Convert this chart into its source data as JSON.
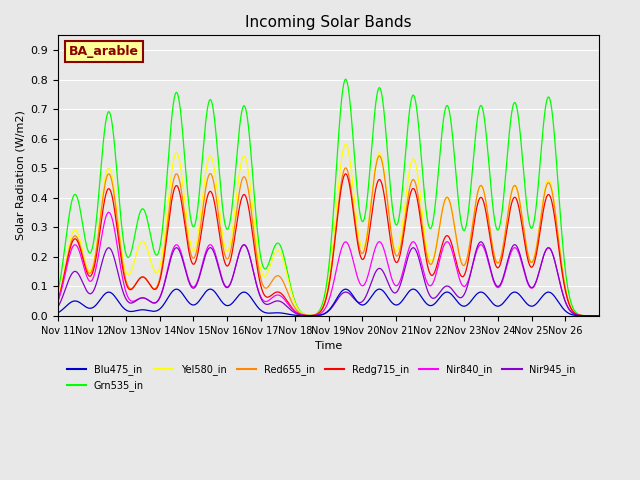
{
  "title": "Incoming Solar Bands",
  "xlabel": "Time",
  "ylabel": "Solar Radiation (W/m2)",
  "annotation": "BA_arable",
  "ylim": [
    0,
    0.95
  ],
  "yticks": [
    0.0,
    0.1,
    0.2,
    0.3,
    0.4,
    0.5,
    0.6,
    0.7,
    0.8,
    0.9
  ],
  "background_color": "#e8e8e8",
  "day_peaks": {
    "Nov11": {
      "grn": 0.41,
      "yel": 0.29,
      "red": 0.27,
      "redg": 0.26,
      "nir840": 0.24,
      "nir945": 0.15,
      "blu": 0.05
    },
    "Nov12": {
      "grn": 0.69,
      "yel": 0.5,
      "red": 0.48,
      "redg": 0.43,
      "nir840": 0.35,
      "nir945": 0.23,
      "blu": 0.08
    },
    "Nov13": {
      "grn": 0.36,
      "yel": 0.25,
      "red": 0.13,
      "redg": 0.13,
      "nir840": 0.06,
      "nir945": 0.06,
      "blu": 0.02
    },
    "Nov14": {
      "grn": 0.755,
      "yel": 0.55,
      "red": 0.48,
      "redg": 0.44,
      "nir840": 0.24,
      "nir945": 0.23,
      "blu": 0.09
    },
    "Nov15": {
      "grn": 0.73,
      "yel": 0.54,
      "red": 0.48,
      "redg": 0.42,
      "nir840": 0.24,
      "nir945": 0.23,
      "blu": 0.09
    },
    "Nov16": {
      "grn": 0.71,
      "yel": 0.54,
      "red": 0.47,
      "redg": 0.41,
      "nir840": 0.24,
      "nir945": 0.24,
      "blu": 0.08
    },
    "Nov17": {
      "grn": 0.245,
      "yel": 0.22,
      "red": 0.135,
      "redg": 0.08,
      "nir840": 0.07,
      "nir945": 0.05,
      "blu": 0.01
    },
    "Nov18": {
      "grn": 0.0,
      "yel": 0.0,
      "red": 0.0,
      "redg": 0.0,
      "nir840": 0.0,
      "nir945": 0.0,
      "blu": 0.0
    },
    "Nov19": {
      "grn": 0.8,
      "yel": 0.58,
      "red": 0.5,
      "redg": 0.48,
      "nir840": 0.25,
      "nir945": 0.08,
      "blu": 0.09
    },
    "Nov20": {
      "grn": 0.77,
      "yel": 0.55,
      "red": 0.54,
      "redg": 0.46,
      "nir840": 0.25,
      "nir945": 0.16,
      "blu": 0.09
    },
    "Nov21": {
      "grn": 0.745,
      "yel": 0.53,
      "red": 0.46,
      "redg": 0.43,
      "nir840": 0.25,
      "nir945": 0.23,
      "blu": 0.09
    },
    "Nov22": {
      "grn": 0.71,
      "yel": 0.4,
      "red": 0.4,
      "redg": 0.27,
      "nir840": 0.25,
      "nir945": 0.1,
      "blu": 0.08
    },
    "Nov23": {
      "grn": 0.71,
      "yel": 0.44,
      "red": 0.44,
      "redg": 0.4,
      "nir840": 0.24,
      "nir945": 0.25,
      "blu": 0.08
    },
    "Nov24": {
      "grn": 0.72,
      "yel": 0.44,
      "red": 0.44,
      "redg": 0.4,
      "nir840": 0.23,
      "nir945": 0.24,
      "blu": 0.08
    },
    "Nov25": {
      "grn": 0.74,
      "yel": 0.46,
      "red": 0.45,
      "redg": 0.41,
      "nir840": 0.23,
      "nir945": 0.23,
      "blu": 0.08
    }
  },
  "day_names": [
    "Nov11",
    "Nov12",
    "Nov13",
    "Nov14",
    "Nov15",
    "Nov16",
    "Nov17",
    "Nov18",
    "Nov19",
    "Nov20",
    "Nov21",
    "Nov22",
    "Nov23",
    "Nov24",
    "Nov25"
  ],
  "xtick_labels": [
    "Nov 11",
    "Nov 12",
    "Nov 13",
    "Nov 14",
    "Nov 15",
    "Nov 16",
    "Nov 17",
    "Nov 18",
    "Nov 19",
    "Nov 20",
    "Nov 21",
    "Nov 22",
    "Nov 23",
    "Nov 24",
    "Nov 25",
    "Nov 26"
  ],
  "legend_entries": [
    {
      "label": "Blu475_in",
      "color": "#0000cc"
    },
    {
      "label": "Grn535_in",
      "color": "#00ff00"
    },
    {
      "label": "Yel580_in",
      "color": "#ffff00"
    },
    {
      "label": "Red655_in",
      "color": "#ff8800"
    },
    {
      "label": "Redg715_in",
      "color": "#ff0000"
    },
    {
      "label": "Nir840_in",
      "color": "#ff00ff"
    },
    {
      "label": "Nir945_in",
      "color": "#8800cc"
    }
  ]
}
